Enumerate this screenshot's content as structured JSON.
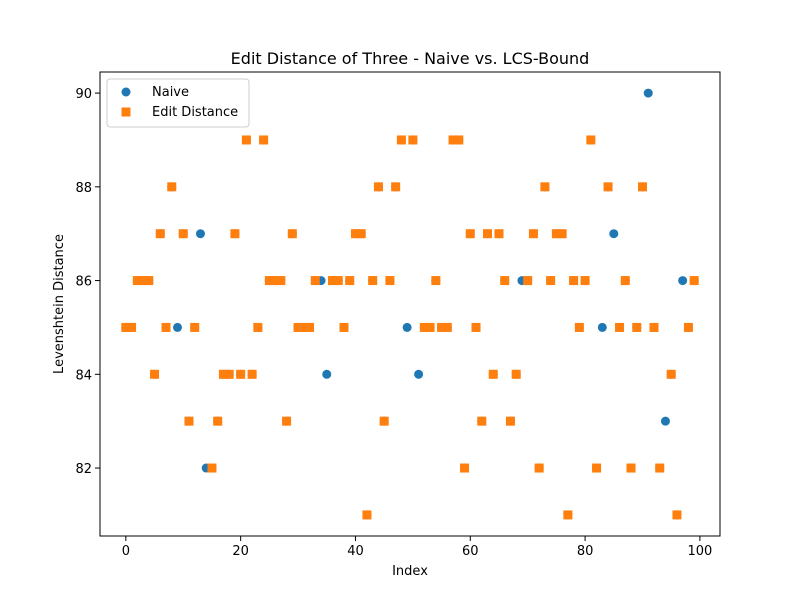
{
  "chart_data": {
    "type": "scatter",
    "title": "Edit Distance of Three - Naive vs. LCS-Bound",
    "xlabel": "Index",
    "ylabel": "Levenshtein Distance",
    "xlim": [
      -4.5,
      103.5
    ],
    "ylim": [
      80.55,
      90.45
    ],
    "xticks": [
      0,
      20,
      40,
      60,
      80,
      100
    ],
    "yticks": [
      82,
      84,
      86,
      88,
      90
    ],
    "grid": false,
    "legend_position": "top-left",
    "x": [
      0,
      1,
      2,
      3,
      4,
      5,
      6,
      7,
      8,
      9,
      10,
      11,
      12,
      13,
      14,
      15,
      16,
      17,
      18,
      19,
      20,
      21,
      22,
      23,
      24,
      25,
      26,
      27,
      28,
      29,
      30,
      31,
      32,
      33,
      34,
      35,
      36,
      37,
      38,
      39,
      40,
      41,
      42,
      43,
      44,
      45,
      46,
      47,
      48,
      49,
      50,
      51,
      52,
      53,
      54,
      55,
      56,
      57,
      58,
      59,
      60,
      61,
      62,
      63,
      64,
      65,
      66,
      67,
      68,
      69,
      70,
      71,
      72,
      73,
      74,
      75,
      76,
      77,
      78,
      79,
      80,
      81,
      82,
      83,
      84,
      85,
      86,
      87,
      88,
      89,
      90,
      91,
      92,
      93,
      94,
      95,
      96,
      97,
      98,
      99
    ],
    "series": [
      {
        "name": "Naive",
        "marker": "circle",
        "color": "#1f77b4",
        "values": [
          85,
          85,
          86,
          86,
          86,
          84,
          87,
          85,
          88,
          85,
          87,
          83,
          85,
          87,
          82,
          82,
          83,
          84,
          84,
          87,
          84,
          89,
          84,
          85,
          89,
          86,
          86,
          86,
          83,
          87,
          85,
          85,
          85,
          86,
          86,
          84,
          86,
          86,
          85,
          86,
          87,
          87,
          81,
          86,
          88,
          83,
          86,
          88,
          89,
          85,
          89,
          84,
          85,
          85,
          86,
          85,
          85,
          89,
          89,
          82,
          87,
          85,
          83,
          87,
          84,
          87,
          86,
          83,
          84,
          86,
          86,
          87,
          82,
          88,
          86,
          87,
          87,
          81,
          86,
          85,
          86,
          89,
          82,
          85,
          88,
          87,
          85,
          86,
          82,
          85,
          88,
          90,
          85,
          82,
          83,
          84,
          81,
          86,
          85,
          86
        ]
      },
      {
        "name": "Edit Distance",
        "marker": "square",
        "color": "#ff7f0e",
        "values": [
          85,
          85,
          86,
          86,
          86,
          84,
          87,
          85,
          88,
          null,
          87,
          83,
          85,
          null,
          null,
          82,
          83,
          84,
          84,
          87,
          84,
          89,
          84,
          85,
          89,
          86,
          86,
          86,
          83,
          87,
          85,
          85,
          85,
          86,
          null,
          null,
          86,
          86,
          85,
          86,
          87,
          87,
          81,
          86,
          88,
          83,
          86,
          88,
          89,
          null,
          89,
          null,
          85,
          85,
          86,
          85,
          85,
          89,
          89,
          82,
          87,
          85,
          83,
          87,
          84,
          87,
          86,
          83,
          84,
          null,
          86,
          87,
          82,
          88,
          86,
          87,
          87,
          81,
          86,
          85,
          86,
          89,
          82,
          null,
          88,
          null,
          85,
          86,
          82,
          85,
          88,
          null,
          85,
          82,
          null,
          84,
          81,
          null,
          85,
          86
        ]
      }
    ]
  }
}
